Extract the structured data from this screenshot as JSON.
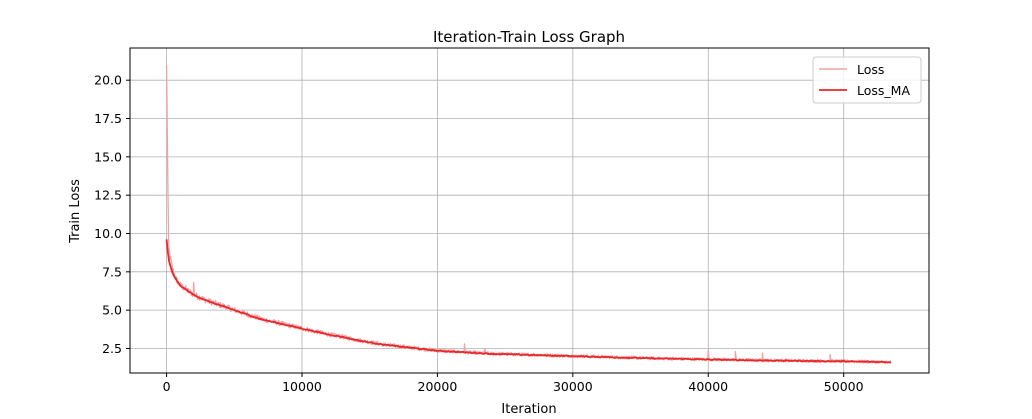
{
  "chart_data": {
    "type": "line",
    "title": "Iteration-Train Loss Graph",
    "xlabel": "Iteration",
    "ylabel": "Train Loss",
    "xlim": [
      -2700,
      56300
    ],
    "ylim": [
      0.9,
      22.1
    ],
    "xticks": [
      0,
      10000,
      20000,
      30000,
      40000,
      50000
    ],
    "yticks": [
      2.5,
      5.0,
      7.5,
      10.0,
      12.5,
      15.0,
      17.5,
      20.0
    ],
    "xtick_labels": [
      "0",
      "10000",
      "20000",
      "30000",
      "40000",
      "50000"
    ],
    "ytick_labels": [
      "2.5",
      "5.0",
      "7.5",
      "10.0",
      "12.5",
      "15.0",
      "17.5",
      "20.0"
    ],
    "grid": true,
    "legend_position": "top-right",
    "series": [
      {
        "name": "Loss",
        "color": "#f4a0a0",
        "style": "noisy",
        "x": [
          0,
          150,
          400,
          700,
          1000,
          1500,
          2000,
          3000,
          4000,
          5000,
          6000,
          7000,
          8000,
          9000,
          10000,
          11000,
          12000,
          13000,
          14000,
          15000,
          16000,
          17000,
          18000,
          19000,
          20000,
          22000,
          24000,
          26000,
          28000,
          30000,
          32000,
          34000,
          36000,
          38000,
          40000,
          42000,
          44000,
          46000,
          48000,
          50000,
          52000,
          53500
        ],
        "y": [
          21.0,
          9.0,
          7.8,
          7.0,
          6.6,
          6.3,
          6.0,
          5.6,
          5.3,
          5.0,
          4.7,
          4.4,
          4.2,
          4.0,
          3.8,
          3.6,
          3.4,
          3.25,
          3.05,
          2.9,
          2.75,
          2.65,
          2.55,
          2.45,
          2.35,
          2.25,
          2.15,
          2.1,
          2.05,
          2.0,
          1.95,
          1.9,
          1.85,
          1.82,
          1.78,
          1.75,
          1.72,
          1.7,
          1.68,
          1.66,
          1.63,
          1.6
        ],
        "spikes": [
          [
            0,
            21.0
          ],
          [
            2000,
            6.8
          ],
          [
            22000,
            2.8
          ],
          [
            23500,
            2.5
          ],
          [
            40000,
            2.4
          ],
          [
            42000,
            2.3
          ],
          [
            44000,
            2.2
          ],
          [
            49000,
            2.1
          ]
        ]
      },
      {
        "name": "Loss_MA",
        "color": "#e8272a",
        "style": "smooth",
        "x": [
          0,
          150,
          400,
          700,
          1000,
          1500,
          2000,
          3000,
          4000,
          5000,
          6000,
          7000,
          8000,
          9000,
          10000,
          11000,
          12000,
          13000,
          14000,
          15000,
          16000,
          17000,
          18000,
          19000,
          20000,
          22000,
          24000,
          26000,
          28000,
          30000,
          32000,
          34000,
          36000,
          38000,
          40000,
          42000,
          44000,
          46000,
          48000,
          50000,
          52000,
          53500
        ],
        "y": [
          9.6,
          8.3,
          7.5,
          7.0,
          6.6,
          6.3,
          6.0,
          5.6,
          5.3,
          5.0,
          4.7,
          4.4,
          4.2,
          4.0,
          3.8,
          3.6,
          3.4,
          3.25,
          3.05,
          2.9,
          2.75,
          2.65,
          2.55,
          2.45,
          2.35,
          2.25,
          2.15,
          2.1,
          2.05,
          2.0,
          1.95,
          1.9,
          1.85,
          1.82,
          1.78,
          1.75,
          1.72,
          1.7,
          1.68,
          1.66,
          1.63,
          1.6
        ]
      }
    ]
  }
}
